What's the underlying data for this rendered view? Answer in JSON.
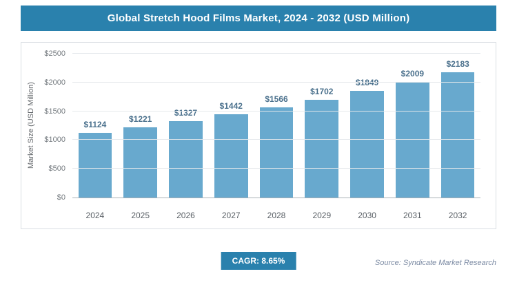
{
  "header": {
    "title": "Global Stretch Hood Films Market, 2024 - 2032 (USD Million)"
  },
  "chart_data": {
    "type": "bar",
    "title": "Global Stretch Hood Films Market, 2024 - 2032 (USD Million)",
    "categories": [
      "2024",
      "2025",
      "2026",
      "2027",
      "2028",
      "2029",
      "2030",
      "2031",
      "2032"
    ],
    "values": [
      1124,
      1221,
      1327,
      1442,
      1566,
      1702,
      1849,
      2009,
      2183
    ],
    "value_labels": [
      "$1124",
      "$1221",
      "$1327",
      "$1442",
      "$1566",
      "$1702",
      "$1849",
      "$2009",
      "$2183"
    ],
    "xlabel": "",
    "ylabel": "Market Size (USD Million)",
    "ylim": [
      0,
      2500
    ],
    "yticks": [
      0,
      500,
      1000,
      1500,
      2000,
      2500
    ],
    "ytick_labels": [
      "$0",
      "$500",
      "$1000",
      "$1500",
      "$2000",
      "$2500"
    ],
    "grid": true,
    "legend": false
  },
  "footer": {
    "cagr_label": "CAGR: 8.65%",
    "source": "Source: Syndicate Market Research"
  },
  "colors": {
    "accent": "#2a81ad",
    "bar": "#68a9ce",
    "value_label": "#4a708c"
  }
}
